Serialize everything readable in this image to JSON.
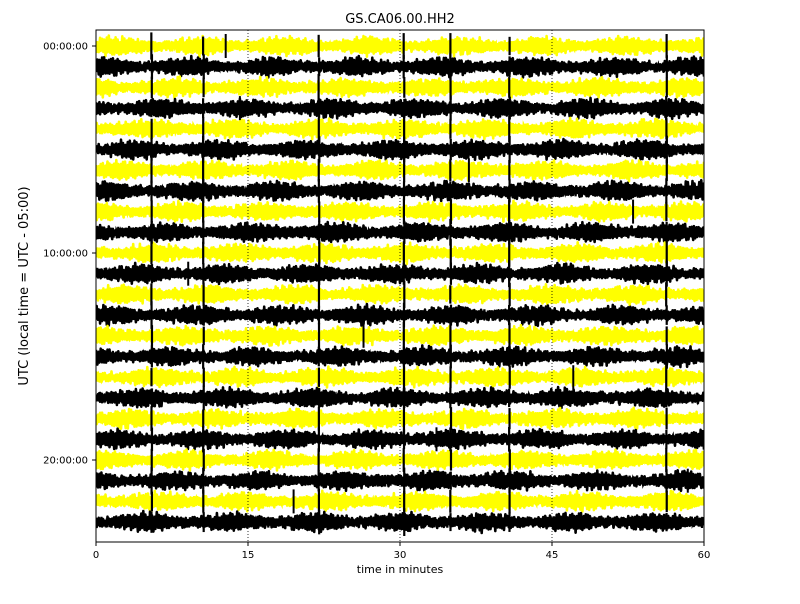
{
  "chart_data": {
    "type": "line",
    "title": "GS.CA06.00.HH2",
    "xlabel": "time in minutes",
    "ylabel": "UTC (local time = UTC - 05:00)",
    "xlim": [
      0,
      60
    ],
    "x_ticks": [
      0,
      15,
      30,
      45,
      60
    ],
    "x_tick_labels": [
      "0",
      "15",
      "30",
      "45",
      "60"
    ],
    "y_ticks_hours": [
      0,
      10,
      20
    ],
    "y_tick_labels": [
      "00:00:00",
      "10:00:00",
      "20:00:00"
    ],
    "rows": 24,
    "row_hours": [
      0,
      1,
      2,
      3,
      4,
      5,
      6,
      7,
      8,
      9,
      10,
      11,
      12,
      13,
      14,
      15,
      16,
      17,
      18,
      19,
      20,
      21,
      22,
      23
    ],
    "vertical_gridlines": [
      15,
      30,
      45
    ],
    "grid": "dotted vertical at 15, 30, 45",
    "legend": "none",
    "colors": {
      "odd_row_trace": "#ffff00",
      "even_row_trace": "#000000",
      "spike": "#000000",
      "gridline": "#000000"
    },
    "spike_events_minutes": [
      5.5,
      10.6,
      22.0,
      30.4,
      35.0,
      40.8,
      56.3
    ],
    "isolated_spikes": [
      {
        "minute": 12.8,
        "row": 0
      },
      {
        "minute": 14.2,
        "row": 3
      },
      {
        "minute": 36.8,
        "row": 6
      },
      {
        "minute": 53.0,
        "row": 8
      },
      {
        "minute": 9.1,
        "row": 11
      },
      {
        "minute": 26.4,
        "row": 14
      },
      {
        "minute": 47.1,
        "row": 16
      },
      {
        "minute": 33.6,
        "row": 19
      },
      {
        "minute": 58.4,
        "row": 21
      },
      {
        "minute": 19.5,
        "row": 22
      }
    ]
  }
}
